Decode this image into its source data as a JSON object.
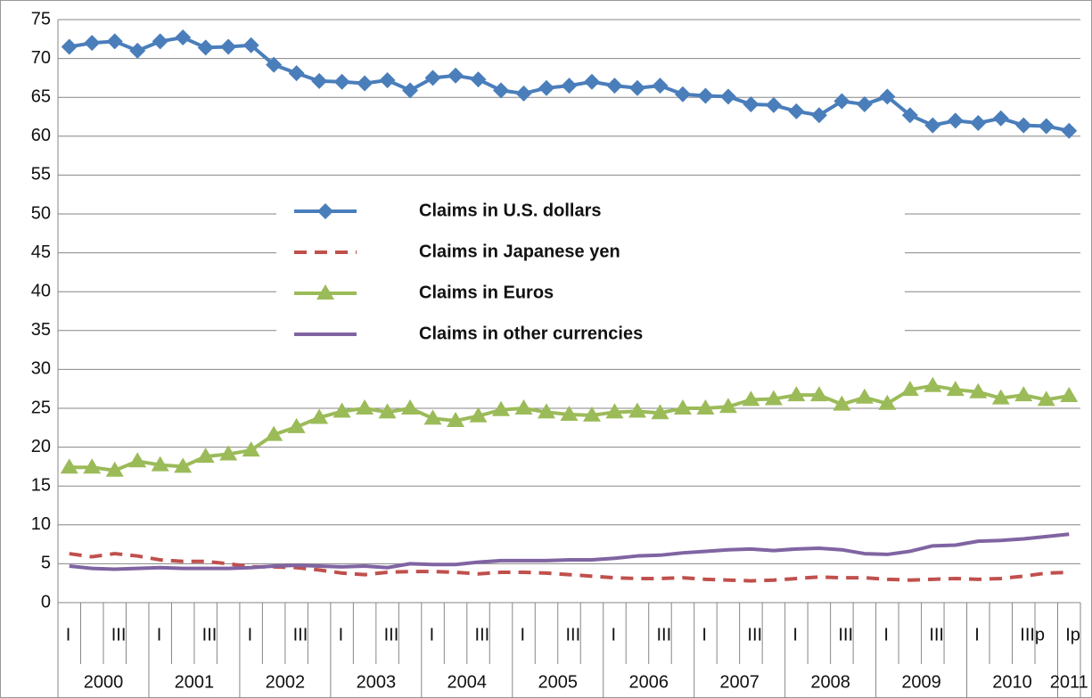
{
  "chart_data": {
    "type": "line",
    "categories": [
      "I",
      null,
      "III",
      null,
      "I",
      null,
      "III",
      null,
      "I",
      null,
      "III",
      null,
      "I",
      null,
      "III",
      null,
      "I",
      null,
      "III",
      null,
      "I",
      null,
      "III",
      null,
      "I",
      null,
      "III",
      null,
      "I",
      null,
      "III",
      null,
      "I",
      null,
      "III",
      null,
      "I",
      null,
      "III",
      null,
      "I",
      null,
      "IIIp",
      null,
      "Ip"
    ],
    "year_labels": [
      "2000",
      "2001",
      "2002",
      "2003",
      "2004",
      "2005",
      "2006",
      "2007",
      "2008",
      "2009",
      "2010",
      "2011"
    ],
    "series": [
      {
        "name": "Claims in U.S. dollars",
        "color": "#4a7ebb",
        "marker": "diamond",
        "dash": false,
        "values": [
          71.5,
          72,
          72.2,
          71,
          72.2,
          72.7,
          71.4,
          71.5,
          71.7,
          69.2,
          68.1,
          67.1,
          67,
          66.8,
          67.2,
          65.9,
          67.5,
          67.8,
          67.3,
          65.9,
          65.5,
          66.2,
          66.5,
          67,
          66.5,
          66.2,
          66.5,
          65.4,
          65.2,
          65.1,
          64.1,
          64,
          63.2,
          62.7,
          64.5,
          64.1,
          65.1,
          62.7,
          61.4,
          62,
          61.7,
          62.3,
          61.4,
          61.3,
          60.7
        ]
      },
      {
        "name": "Claims in Japanese yen",
        "color": "#c0504d",
        "marker": null,
        "dash": true,
        "values": [
          6.3,
          5.9,
          6.3,
          6.0,
          5.5,
          5.3,
          5.3,
          5.0,
          4.6,
          4.6,
          4.5,
          4.2,
          3.8,
          3.6,
          3.9,
          4.0,
          4.0,
          3.9,
          3.7,
          3.9,
          3.9,
          3.8,
          3.6,
          3.4,
          3.2,
          3.1,
          3.1,
          3.2,
          3.0,
          2.9,
          2.8,
          2.9,
          3.1,
          3.3,
          3.2,
          3.2,
          3.0,
          2.9,
          3.0,
          3.1,
          3.0,
          3.1,
          3.4,
          3.8,
          3.9
        ]
      },
      {
        "name": "Claims in Euros",
        "color": "#9bbb59",
        "marker": "triangle",
        "dash": false,
        "values": [
          17.4,
          17.4,
          17,
          18.2,
          17.7,
          17.5,
          18.8,
          19.1,
          19.6,
          21.6,
          22.6,
          23.8,
          24.6,
          25,
          24.5,
          25,
          23.7,
          23.4,
          24,
          24.8,
          25,
          24.5,
          24.2,
          24.1,
          24.5,
          24.6,
          24.4,
          25,
          25,
          25.2,
          26.1,
          26.2,
          26.7,
          26.7,
          25.5,
          26.4,
          25.6,
          27.4,
          27.9,
          27.4,
          27.1,
          26.3,
          26.7,
          26.1,
          26.6
        ]
      },
      {
        "name": "Claims in other currencies",
        "color": "#8064a2",
        "marker": null,
        "dash": false,
        "values": [
          4.7,
          4.4,
          4.3,
          4.4,
          4.5,
          4.4,
          4.4,
          4.4,
          4.5,
          4.7,
          4.8,
          4.7,
          4.6,
          4.7,
          4.5,
          5.0,
          4.9,
          4.9,
          5.2,
          5.4,
          5.4,
          5.4,
          5.5,
          5.5,
          5.7,
          6.0,
          6.1,
          6.4,
          6.6,
          6.8,
          6.9,
          6.7,
          6.9,
          7.0,
          6.8,
          6.3,
          6.2,
          6.6,
          7.3,
          7.4,
          7.9,
          8.0,
          8.2,
          8.5,
          8.8
        ]
      }
    ],
    "ylim": [
      0,
      75
    ],
    "yticks": [
      0,
      5,
      10,
      15,
      20,
      25,
      30,
      35,
      40,
      45,
      50,
      55,
      60,
      65,
      70,
      75
    ],
    "grid": true
  }
}
